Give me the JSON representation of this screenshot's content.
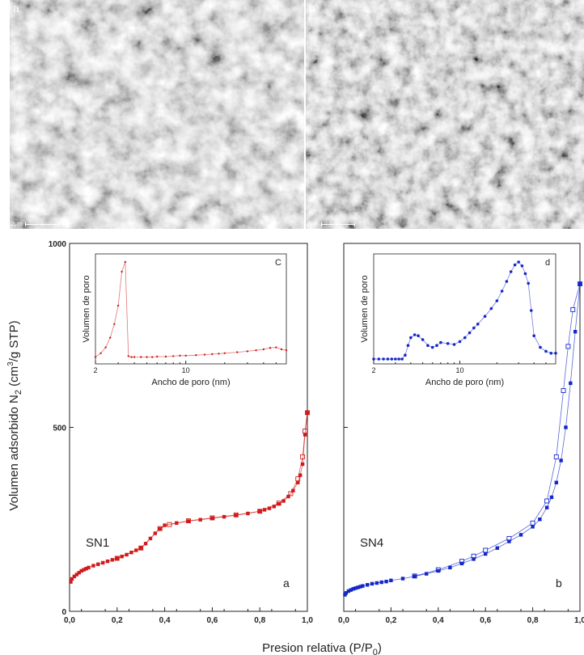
{
  "sem_images": [
    {
      "label": "a",
      "scale": "2μm"
    },
    {
      "label": "b",
      "scale": "2μm"
    }
  ],
  "shared": {
    "ylabel_main": "Volumen adsorbido N",
    "ylabel_sub": "2",
    "ylabel_unit_a": " (cm",
    "ylabel_unit_sup": "3",
    "ylabel_unit_b": "/g STP)",
    "xlabel_main": "Presion relativa (P/P",
    "xlabel_sub": "0",
    "xlabel_end": ")"
  },
  "chart_data": [
    {
      "type": "scatter",
      "panel_letter": "a",
      "sample": "SN1",
      "color": "#d11a1a",
      "xlim": [
        0,
        1.0
      ],
      "ylim": [
        0,
        1000
      ],
      "xticks": [
        "0,0",
        "0,2",
        "0,4",
        "0,6",
        "0,8",
        "1,0"
      ],
      "yticks": [
        "0",
        "500",
        "1000"
      ],
      "adsorption": {
        "x": [
          0.005,
          0.01,
          0.02,
          0.03,
          0.04,
          0.05,
          0.06,
          0.07,
          0.08,
          0.1,
          0.12,
          0.14,
          0.16,
          0.18,
          0.2,
          0.22,
          0.24,
          0.26,
          0.28,
          0.3,
          0.32,
          0.34,
          0.36,
          0.38,
          0.4,
          0.45,
          0.5,
          0.55,
          0.6,
          0.65,
          0.7,
          0.75,
          0.8,
          0.82,
          0.84,
          0.86,
          0.88,
          0.9,
          0.92,
          0.94,
          0.96,
          0.97,
          0.98,
          0.99,
          1.0
        ],
        "y": [
          80,
          88,
          95,
          100,
          105,
          110,
          113,
          116,
          119,
          124,
          128,
          132,
          136,
          140,
          144,
          149,
          154,
          160,
          166,
          172,
          184,
          198,
          212,
          224,
          234,
          240,
          245,
          249,
          253,
          257,
          261,
          266,
          272,
          276,
          280,
          285,
          292,
          300,
          312,
          328,
          350,
          370,
          400,
          480,
          540
        ]
      },
      "desorption": {
        "x": [
          0.2,
          0.3,
          0.38,
          0.42,
          0.5,
          0.6,
          0.7,
          0.8,
          0.88,
          0.93,
          0.96,
          0.98,
          0.99,
          1.0
        ],
        "y": [
          144,
          172,
          225,
          236,
          246,
          254,
          262,
          272,
          294,
          320,
          360,
          420,
          490,
          540
        ]
      },
      "inset": {
        "ylabel": "Volumen de poro",
        "xlabel": "Ancho de poro (nm)",
        "letter": "C",
        "xlim": [
          2,
          60
        ],
        "xticks": [
          "2",
          "10"
        ],
        "x": [
          2.0,
          2.2,
          2.4,
          2.6,
          2.8,
          3.0,
          3.2,
          3.4,
          3.6,
          3.8,
          4.0,
          4.5,
          5,
          5.5,
          6,
          7,
          8,
          9,
          10,
          12,
          14,
          16,
          18,
          20,
          25,
          30,
          35,
          40,
          45,
          50,
          55,
          60
        ],
        "y": [
          0.02,
          0.06,
          0.12,
          0.22,
          0.36,
          0.55,
          0.9,
          1.0,
          0.03,
          0.02,
          0.02,
          0.02,
          0.02,
          0.02,
          0.025,
          0.025,
          0.03,
          0.035,
          0.035,
          0.04,
          0.045,
          0.05,
          0.055,
          0.06,
          0.07,
          0.08,
          0.09,
          0.1,
          0.115,
          0.12,
          0.1,
          0.09
        ]
      }
    },
    {
      "type": "scatter",
      "panel_letter": "b",
      "sample": "SN4",
      "color": "#1427c8",
      "xlim": [
        0,
        1.0
      ],
      "ylim": [
        0,
        1000
      ],
      "xticks": [
        "0,0",
        "0,2",
        "0,4",
        "0,6",
        "0,8",
        "1,0"
      ],
      "yticks": [
        "0",
        "500",
        "1000"
      ],
      "adsorption": {
        "x": [
          0.005,
          0.01,
          0.02,
          0.03,
          0.04,
          0.05,
          0.06,
          0.07,
          0.08,
          0.1,
          0.12,
          0.14,
          0.16,
          0.18,
          0.2,
          0.25,
          0.3,
          0.35,
          0.4,
          0.45,
          0.5,
          0.55,
          0.6,
          0.65,
          0.7,
          0.75,
          0.8,
          0.83,
          0.86,
          0.88,
          0.9,
          0.92,
          0.94,
          0.96,
          0.98,
          1.0
        ],
        "y": [
          45,
          50,
          55,
          58,
          61,
          63,
          65,
          67,
          69,
          72,
          75,
          77,
          79,
          81,
          84,
          89,
          95,
          102,
          110,
          119,
          130,
          142,
          156,
          172,
          190,
          208,
          230,
          250,
          282,
          310,
          350,
          410,
          500,
          620,
          760,
          890
        ]
      },
      "desorption": {
        "x": [
          0.3,
          0.4,
          0.5,
          0.55,
          0.6,
          0.7,
          0.8,
          0.86,
          0.9,
          0.93,
          0.95,
          0.97,
          1.0
        ],
        "y": [
          96,
          113,
          136,
          150,
          166,
          198,
          240,
          300,
          420,
          600,
          720,
          820,
          890
        ]
      },
      "inset": {
        "ylabel": "Volumen de poro",
        "xlabel": "Ancho de poro (nm)",
        "letter": "d",
        "xlim": [
          2,
          60
        ],
        "xticks": [
          "2",
          "10"
        ],
        "x": [
          2.0,
          2.2,
          2.4,
          2.6,
          2.8,
          3.0,
          3.2,
          3.4,
          3.6,
          3.8,
          4.0,
          4.3,
          4.6,
          5.0,
          5.5,
          6.0,
          6.5,
          7.0,
          8.0,
          9.0,
          10,
          11,
          12,
          13,
          14,
          16,
          18,
          20,
          22,
          24,
          26,
          28,
          30,
          32,
          34,
          36,
          38,
          40,
          45,
          50,
          55,
          60
        ],
        "y": [
          0.0,
          0.0,
          0.0,
          0.0,
          0.0,
          0.0,
          0.0,
          0.0,
          0.04,
          0.14,
          0.22,
          0.25,
          0.24,
          0.2,
          0.14,
          0.12,
          0.14,
          0.17,
          0.16,
          0.15,
          0.18,
          0.22,
          0.27,
          0.32,
          0.36,
          0.44,
          0.52,
          0.6,
          0.7,
          0.8,
          0.9,
          0.97,
          1.0,
          0.96,
          0.88,
          0.78,
          0.5,
          0.24,
          0.12,
          0.08,
          0.06,
          0.06
        ]
      }
    }
  ]
}
